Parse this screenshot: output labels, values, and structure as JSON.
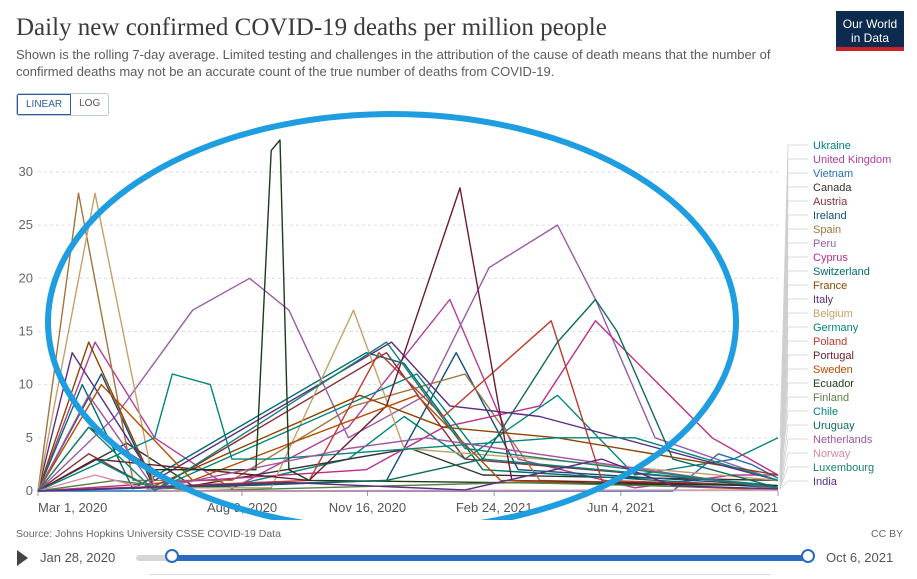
{
  "header": {
    "title": "Daily new confirmed COVID-19 deaths per million people",
    "subtitle": "Shown is the rolling 7-day average. Limited testing and challenges in the attribution of the cause of death means that the number of confirmed deaths may not be an accurate count of the true number of deaths from COVID-19.",
    "logo_line1": "Our World",
    "logo_line2": "in Data"
  },
  "scale_toggle": {
    "linear": "LINEAR",
    "log": "LOG",
    "selected": "LINEAR"
  },
  "footer": {
    "source": "Source: Johns Hopkins University CSSE COVID-19 Data",
    "license": "CC BY"
  },
  "timeline": {
    "start": "Jan 28, 2020",
    "end": "Oct 6, 2021"
  },
  "chart_data": {
    "type": "line",
    "xlim": [
      "2020-03-01",
      "2021-10-06"
    ],
    "ylim": [
      0,
      33
    ],
    "y_ticks": [
      0,
      5,
      10,
      15,
      20,
      25,
      30
    ],
    "y_tick_labels": [
      "0",
      "5",
      "10",
      "15",
      "20",
      "25",
      "30"
    ],
    "x_ticks": [
      "2020-03-01",
      "2020-08-09",
      "2020-11-16",
      "2021-02-24",
      "2021-06-04",
      "2021-10-06"
    ],
    "x_tick_labels": [
      "Mar 1, 2020",
      "Aug 9, 2020",
      "Nov 16, 2020",
      "Feb 24, 2021",
      "Jun 4, 2021",
      "Oct 6, 2021"
    ],
    "grid": "horizontal",
    "legend_position": "right",
    "series": [
      {
        "name": "Ukraine",
        "color": "#00847e",
        "x": [
          "2020-03-01",
          "2020-08-01",
          "2020-11-01",
          "2020-12-15",
          "2021-02-01",
          "2021-04-15",
          "2021-06-15",
          "2021-09-01",
          "2021-10-06"
        ],
        "y": [
          0,
          0.5,
          3,
          7,
          3,
          9,
          1.5,
          3,
          5
        ]
      },
      {
        "name": "United Kingdom",
        "color": "#b13d9a",
        "x": [
          "2020-03-01",
          "2020-04-15",
          "2020-06-01",
          "2020-08-01",
          "2020-11-01",
          "2021-01-20",
          "2021-03-15",
          "2021-06-15",
          "2021-09-01",
          "2021-10-06"
        ],
        "y": [
          0,
          14,
          5,
          0.2,
          6,
          18,
          3,
          0.3,
          1.5,
          1.5
        ]
      },
      {
        "name": "Vietnam",
        "color": "#286bbb",
        "x": [
          "2020-03-01",
          "2021-07-15",
          "2021-08-20",
          "2021-09-15",
          "2021-10-06"
        ],
        "y": [
          0,
          0,
          3.5,
          2.5,
          1.2
        ]
      },
      {
        "name": "Canada",
        "color": "#333333",
        "x": [
          "2020-03-01",
          "2020-05-10",
          "2020-07-01",
          "2020-12-20",
          "2021-02-15",
          "2021-10-06"
        ],
        "y": [
          0,
          4.5,
          0.5,
          4,
          1.5,
          1
        ]
      },
      {
        "name": "Austria",
        "color": "#883039",
        "x": [
          "2020-03-01",
          "2020-04-10",
          "2020-06-01",
          "2020-12-01",
          "2021-02-01",
          "2021-10-06"
        ],
        "y": [
          0,
          3.5,
          0.1,
          13,
          3,
          0.5
        ]
      },
      {
        "name": "Ireland",
        "color": "#0e4f7a",
        "x": [
          "2020-03-01",
          "2020-04-20",
          "2020-06-01",
          "2020-12-01",
          "2021-01-25",
          "2021-03-15",
          "2021-10-06"
        ],
        "y": [
          0,
          11,
          0.2,
          1,
          13,
          2,
          0.5
        ]
      },
      {
        "name": "Spain",
        "color": "#a2753e",
        "x": [
          "2020-03-01",
          "2020-04-02",
          "2020-05-15",
          "2020-08-01",
          "2020-11-05",
          "2021-02-01",
          "2021-04-01",
          "2021-10-06"
        ],
        "y": [
          0,
          28,
          1,
          1,
          8,
          11,
          1,
          0.5
        ]
      },
      {
        "name": "Peru",
        "color": "#9a5ba8",
        "x": [
          "2020-03-01",
          "2020-05-01",
          "2020-07-01",
          "2020-08-15",
          "2020-09-15",
          "2020-11-01",
          "2021-01-01",
          "2021-02-20",
          "2021-04-15",
          "2021-05-15",
          "2021-07-01",
          "2021-10-06"
        ],
        "y": [
          0,
          7,
          17,
          20,
          17,
          5,
          9,
          21,
          25,
          18,
          5,
          1
        ]
      },
      {
        "name": "Cyprus",
        "color": "#be2c86",
        "x": [
          "2020-03-01",
          "2020-11-15",
          "2021-01-15",
          "2021-04-01",
          "2021-05-15",
          "2021-08-15",
          "2021-10-06"
        ],
        "y": [
          0,
          2,
          6,
          8,
          16,
          5,
          1.5
        ]
      },
      {
        "name": "Switzerland",
        "color": "#006d6d",
        "x": [
          "2020-03-01",
          "2020-04-05",
          "2020-05-15",
          "2020-11-15",
          "2020-12-15",
          "2021-02-15",
          "2021-10-06"
        ],
        "y": [
          0,
          10,
          0.2,
          13,
          12,
          2,
          0.3
        ]
      },
      {
        "name": "France",
        "color": "#8e4500",
        "x": [
          "2020-03-01",
          "2020-04-10",
          "2020-06-01",
          "2020-11-10",
          "2021-01-15",
          "2021-04-15",
          "2021-10-06"
        ],
        "y": [
          0,
          14,
          0.5,
          9,
          6,
          5,
          1.5
        ]
      },
      {
        "name": "Italy",
        "color": "#5b2c83",
        "x": [
          "2020-03-01",
          "2020-03-28",
          "2020-06-01",
          "2020-12-05",
          "2021-01-20",
          "2021-04-01",
          "2021-10-06"
        ],
        "y": [
          0,
          13,
          1,
          14,
          8,
          7,
          1
        ]
      },
      {
        "name": "Belgium",
        "color": "#c4a16a",
        "x": [
          "2020-03-01",
          "2020-04-15",
          "2020-06-01",
          "2020-09-01",
          "2020-11-05",
          "2020-12-15",
          "2021-04-01",
          "2021-10-06"
        ],
        "y": [
          0,
          28,
          0.3,
          0.3,
          17,
          4,
          3,
          1
        ]
      },
      {
        "name": "Germany",
        "color": "#00847e",
        "x": [
          "2020-03-01",
          "2020-04-15",
          "2020-06-01",
          "2020-12-25",
          "2021-02-15",
          "2021-10-06"
        ],
        "y": [
          0,
          3,
          0.1,
          11,
          3,
          0.5
        ]
      },
      {
        "name": "Poland",
        "color": "#c0392b",
        "x": [
          "2020-03-01",
          "2020-10-01",
          "2020-11-25",
          "2021-01-15",
          "2021-04-10",
          "2021-05-20",
          "2021-10-06"
        ],
        "y": [
          0,
          1,
          13,
          7,
          16,
          1,
          0.5
        ]
      },
      {
        "name": "Portugal",
        "color": "#6b1d2e",
        "x": [
          "2020-03-01",
          "2020-04-15",
          "2020-10-01",
          "2020-12-01",
          "2021-01-28",
          "2021-03-10",
          "2021-10-06"
        ],
        "y": [
          0,
          3,
          1,
          8,
          28.5,
          1,
          0.5
        ]
      },
      {
        "name": "Sweden",
        "color": "#b84a00",
        "x": [
          "2020-03-01",
          "2020-04-20",
          "2020-07-01",
          "2020-12-25",
          "2021-03-01",
          "2021-10-06"
        ],
        "y": [
          0,
          10,
          1,
          9,
          1,
          0.1
        ]
      },
      {
        "name": "Ecuador",
        "color": "#1a3d1a",
        "x": [
          "2020-03-01",
          "2020-04-10",
          "2020-06-01",
          "2020-08-20",
          "2020-09-01",
          "2020-09-08",
          "2020-09-15",
          "2020-10-01",
          "2021-10-06"
        ],
        "y": [
          0,
          6,
          2,
          2,
          32,
          33,
          2,
          1,
          0.5
        ]
      },
      {
        "name": "Finland",
        "color": "#578145",
        "x": [
          "2020-03-01",
          "2020-05-01",
          "2020-07-01",
          "2021-03-15",
          "2021-10-06"
        ],
        "y": [
          0,
          1,
          0,
          0.8,
          0.2
        ]
      },
      {
        "name": "Chile",
        "color": "#00847e",
        "x": [
          "2020-03-01",
          "2020-06-01",
          "2020-06-15",
          "2020-07-15",
          "2020-08-01",
          "2020-09-01",
          "2021-04-15",
          "2021-06-15",
          "2021-10-06"
        ],
        "y": [
          0,
          5,
          11,
          10,
          3,
          3,
          5,
          5,
          1
        ]
      },
      {
        "name": "Uruguay",
        "color": "#0e6b5e",
        "x": [
          "2020-03-01",
          "2020-12-01",
          "2021-02-15",
          "2021-04-15",
          "2021-05-15",
          "2021-06-01",
          "2021-07-15",
          "2021-10-06"
        ],
        "y": [
          0,
          1,
          3,
          14,
          18,
          15,
          3,
          0.3
        ]
      },
      {
        "name": "Netherlands",
        "color": "#a2559c",
        "x": [
          "2020-03-01",
          "2020-04-10",
          "2020-06-01",
          "2020-11-01",
          "2021-01-01",
          "2021-10-06"
        ],
        "y": [
          0,
          9,
          0.2,
          4,
          5,
          0.2
        ]
      },
      {
        "name": "Norway",
        "color": "#d38aa5",
        "x": [
          "2020-03-01",
          "2020-04-15",
          "2020-06-01",
          "2021-10-06"
        ],
        "y": [
          0,
          1.5,
          0,
          0.1
        ]
      },
      {
        "name": "Luxembourg",
        "color": "#1a7f70",
        "x": [
          "2020-03-01",
          "2020-04-10",
          "2020-06-01",
          "2020-12-01",
          "2021-02-01",
          "2021-10-06"
        ],
        "y": [
          0,
          6,
          0,
          14,
          4,
          0.3
        ]
      },
      {
        "name": "India",
        "color": "#5b2c83",
        "x": [
          "2020-03-01",
          "2020-09-15",
          "2021-02-01",
          "2021-05-20",
          "2021-07-15",
          "2021-10-06"
        ],
        "y": [
          0,
          0.8,
          0.1,
          3,
          0.5,
          0.2
        ]
      }
    ]
  }
}
